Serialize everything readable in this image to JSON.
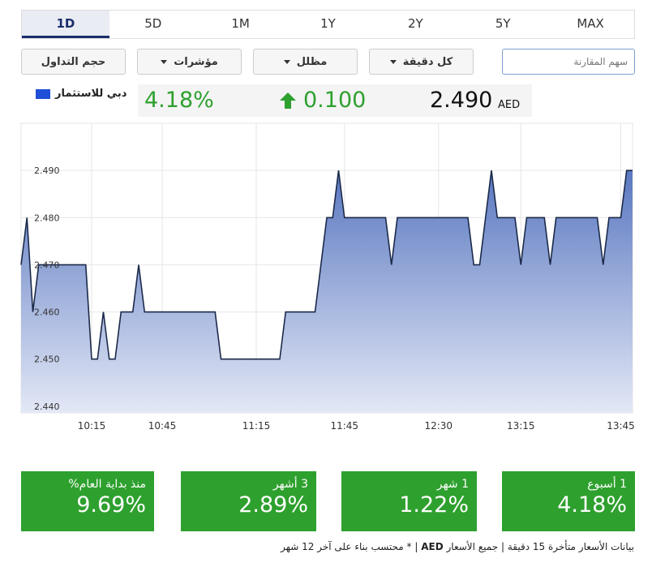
{
  "tabs": [
    "1D",
    "5D",
    "1M",
    "1Y",
    "2Y",
    "5Y",
    "MAX"
  ],
  "active_tab": "1D",
  "controls": {
    "compare_placeholder": "سهم المقارنة",
    "dropdowns": [
      "كل دقيقة",
      "مظلل",
      "مؤشرات",
      "حجم التداول"
    ]
  },
  "quote": {
    "name": "دبي للاستثمار",
    "price": "2.490",
    "currency": "AED",
    "change": "0.100",
    "change_pct": "4.18%"
  },
  "chart_data": {
    "type": "area",
    "x": [
      0,
      1,
      2,
      3,
      11,
      12,
      13,
      14,
      15,
      16,
      17,
      19,
      20,
      21,
      33,
      34,
      44,
      45,
      50,
      52,
      53,
      54,
      55,
      62,
      63,
      64,
      76,
      77,
      78,
      80,
      81,
      84,
      85,
      86,
      89,
      90,
      91,
      98,
      99,
      100,
      102,
      103,
      104
    ],
    "values": [
      2.47,
      2.48,
      2.46,
      2.47,
      2.47,
      2.45,
      2.45,
      2.46,
      2.45,
      2.45,
      2.46,
      2.46,
      2.47,
      2.46,
      2.46,
      2.45,
      2.45,
      2.46,
      2.46,
      2.48,
      2.48,
      2.49,
      2.48,
      2.48,
      2.47,
      2.48,
      2.48,
      2.47,
      2.47,
      2.49,
      2.48,
      2.48,
      2.47,
      2.48,
      2.48,
      2.47,
      2.48,
      2.48,
      2.47,
      2.48,
      2.48,
      2.49,
      2.49
    ],
    "color": "#1b2a4a",
    "xlim": [
      0,
      104
    ],
    "xticks": [
      {
        "value": 12,
        "label": "10:15"
      },
      {
        "value": 24,
        "label": "10:45"
      },
      {
        "value": 40,
        "label": "11:15"
      },
      {
        "value": 55,
        "label": "11:45"
      },
      {
        "value": 71,
        "label": "12:30"
      },
      {
        "value": 85,
        "label": "13:15"
      },
      {
        "value": 102,
        "label": "13:45"
      }
    ],
    "ylim": [
      2.4386,
      2.5
    ],
    "yticks": [
      {
        "value": 2.44,
        "label": "2.440"
      },
      {
        "value": 2.45,
        "label": "2.450"
      },
      {
        "value": 2.46,
        "label": "2.460"
      },
      {
        "value": 2.47,
        "label": "2.470"
      },
      {
        "value": 2.48,
        "label": "2.480"
      },
      {
        "value": 2.49,
        "label": "2.490"
      }
    ],
    "grid": true
  },
  "stats": [
    {
      "label": "1 أسبوع",
      "value": "4.18%"
    },
    {
      "label": "1 شهر",
      "value": "1.22%"
    },
    {
      "label": "3 أشهر",
      "value": "2.89%"
    },
    {
      "label": "منذ بداية العام%",
      "value": "9.69%"
    }
  ],
  "footer": {
    "before": "بيانات الأسعار متأخرة 15 دقيقة | جميع الأسعار",
    "bold": "AED",
    "after": "| * محتسب بناء على آخر 12 شهر"
  }
}
